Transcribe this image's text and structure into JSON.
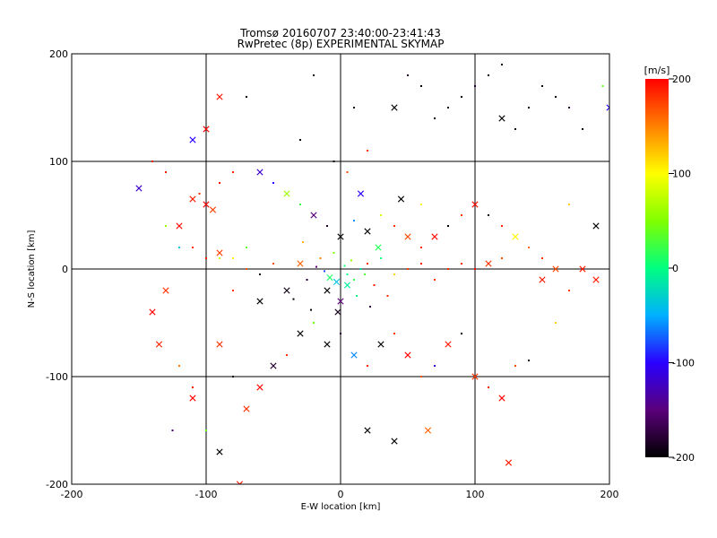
{
  "chart_data": {
    "type": "scatter",
    "title": "Tromsø 20160707 23:40:00-23:41:43",
    "subtitle": "RwPretec (8p) EXPERIMENTAL SKYMAP",
    "xlabel": "E-W location [km]",
    "ylabel": "N-S location [km]",
    "xlim": [
      -200,
      200
    ],
    "ylim": [
      -200,
      200
    ],
    "xticks": [
      -200,
      -100,
      0,
      100,
      200
    ],
    "yticks": [
      -200,
      -100,
      0,
      100,
      200
    ],
    "grid": true,
    "grid_lines": [
      -100,
      0,
      100
    ],
    "colorbar": {
      "label": "[m/s]",
      "range": [
        -200,
        200
      ],
      "ticks": [
        200,
        100,
        0,
        -100,
        -200
      ],
      "colormap": [
        "#000000",
        "#5a007a",
        "#2a00ff",
        "#00b0ff",
        "#00ff80",
        "#80ff00",
        "#ffff00",
        "#ff8000",
        "#ff0000"
      ]
    },
    "markers": {
      "small": "dot",
      "large": "x"
    },
    "points": [
      {
        "x": 5,
        "y": -5,
        "v": 0,
        "m": "dot"
      },
      {
        "x": 10,
        "y": -10,
        "v": 20,
        "m": "dot"
      },
      {
        "x": 15,
        "y": 0,
        "v": -20,
        "m": "dot"
      },
      {
        "x": -10,
        "y": -20,
        "v": -200,
        "m": "x"
      },
      {
        "x": -15,
        "y": 10,
        "v": 150,
        "m": "dot"
      },
      {
        "x": 20,
        "y": 5,
        "v": 180,
        "m": "dot"
      },
      {
        "x": 0,
        "y": -30,
        "v": -150,
        "m": "x"
      },
      {
        "x": -5,
        "y": 15,
        "v": 50,
        "m": "dot"
      },
      {
        "x": 25,
        "y": -15,
        "v": 190,
        "m": "dot"
      },
      {
        "x": -25,
        "y": -10,
        "v": -180,
        "m": "dot"
      },
      {
        "x": 30,
        "y": 10,
        "v": 0,
        "m": "dot"
      },
      {
        "x": -30,
        "y": 5,
        "v": 160,
        "m": "x"
      },
      {
        "x": 40,
        "y": -5,
        "v": 120,
        "m": "dot"
      },
      {
        "x": -40,
        "y": -20,
        "v": -190,
        "m": "x"
      },
      {
        "x": 50,
        "y": 0,
        "v": 175,
        "m": "dot"
      },
      {
        "x": -50,
        "y": 5,
        "v": 170,
        "m": "dot"
      },
      {
        "x": 60,
        "y": 5,
        "v": 195,
        "m": "dot"
      },
      {
        "x": -60,
        "y": -5,
        "v": -200,
        "m": "dot"
      },
      {
        "x": 70,
        "y": -10,
        "v": 180,
        "m": "dot"
      },
      {
        "x": -70,
        "y": 0,
        "v": 165,
        "m": "dot"
      },
      {
        "x": 80,
        "y": 0,
        "v": 185,
        "m": "dot"
      },
      {
        "x": -80,
        "y": 10,
        "v": 100,
        "m": "dot"
      },
      {
        "x": 90,
        "y": 5,
        "v": 190,
        "m": "dot"
      },
      {
        "x": -90,
        "y": 15,
        "v": 175,
        "m": "x"
      },
      {
        "x": 100,
        "y": 0,
        "v": 200,
        "m": "dot"
      },
      {
        "x": -100,
        "y": 10,
        "v": 190,
        "m": "dot"
      },
      {
        "x": 110,
        "y": 5,
        "v": 180,
        "m": "x"
      },
      {
        "x": 120,
        "y": 10,
        "v": 170,
        "m": "dot"
      },
      {
        "x": -110,
        "y": 20,
        "v": 185,
        "m": "dot"
      },
      {
        "x": -120,
        "y": 40,
        "v": 195,
        "m": "x"
      },
      {
        "x": -100,
        "y": 60,
        "v": 200,
        "m": "x"
      },
      {
        "x": -105,
        "y": 70,
        "v": 180,
        "m": "dot"
      },
      {
        "x": -95,
        "y": 55,
        "v": 175,
        "m": "x"
      },
      {
        "x": -110,
        "y": 65,
        "v": 190,
        "m": "x"
      },
      {
        "x": -90,
        "y": 80,
        "v": 200,
        "m": "dot"
      },
      {
        "x": -80,
        "y": 90,
        "v": 185,
        "m": "dot"
      },
      {
        "x": -60,
        "y": 90,
        "v": -120,
        "m": "x"
      },
      {
        "x": -50,
        "y": 80,
        "v": -100,
        "m": "dot"
      },
      {
        "x": -40,
        "y": 70,
        "v": 60,
        "m": "x"
      },
      {
        "x": -30,
        "y": 60,
        "v": 20,
        "m": "dot"
      },
      {
        "x": -20,
        "y": 50,
        "v": -150,
        "m": "x"
      },
      {
        "x": -10,
        "y": 40,
        "v": -180,
        "m": "dot"
      },
      {
        "x": 0,
        "y": 30,
        "v": -200,
        "m": "x"
      },
      {
        "x": 10,
        "y": 45,
        "v": -60,
        "m": "dot"
      },
      {
        "x": 20,
        "y": 35,
        "v": -200,
        "m": "x"
      },
      {
        "x": 30,
        "y": 50,
        "v": 80,
        "m": "dot"
      },
      {
        "x": 40,
        "y": 40,
        "v": 180,
        "m": "dot"
      },
      {
        "x": 50,
        "y": 30,
        "v": 170,
        "m": "x"
      },
      {
        "x": 60,
        "y": 20,
        "v": 190,
        "m": "dot"
      },
      {
        "x": 70,
        "y": 30,
        "v": 200,
        "m": "x"
      },
      {
        "x": 80,
        "y": 40,
        "v": -200,
        "m": "dot"
      },
      {
        "x": 90,
        "y": 50,
        "v": 180,
        "m": "dot"
      },
      {
        "x": 100,
        "y": 60,
        "v": 195,
        "m": "x"
      },
      {
        "x": 110,
        "y": 50,
        "v": -190,
        "m": "dot"
      },
      {
        "x": 120,
        "y": 40,
        "v": 185,
        "m": "dot"
      },
      {
        "x": 130,
        "y": 30,
        "v": 100,
        "m": "x"
      },
      {
        "x": 140,
        "y": 20,
        "v": 160,
        "m": "dot"
      },
      {
        "x": 150,
        "y": 10,
        "v": 180,
        "m": "dot"
      },
      {
        "x": 160,
        "y": 0,
        "v": 170,
        "m": "x"
      },
      {
        "x": 180,
        "y": 0,
        "v": 190,
        "m": "x"
      },
      {
        "x": 190,
        "y": 40,
        "v": -200,
        "m": "x"
      },
      {
        "x": 170,
        "y": 60,
        "v": 120,
        "m": "dot"
      },
      {
        "x": 70,
        "y": 140,
        "v": -200,
        "m": "dot"
      },
      {
        "x": 80,
        "y": 150,
        "v": -190,
        "m": "dot"
      },
      {
        "x": 90,
        "y": 160,
        "v": -200,
        "m": "dot"
      },
      {
        "x": 100,
        "y": 170,
        "v": -180,
        "m": "dot"
      },
      {
        "x": 110,
        "y": 180,
        "v": -200,
        "m": "dot"
      },
      {
        "x": 120,
        "y": 140,
        "v": -200,
        "m": "x"
      },
      {
        "x": 130,
        "y": 130,
        "v": -190,
        "m": "dot"
      },
      {
        "x": 140,
        "y": 150,
        "v": -200,
        "m": "dot"
      },
      {
        "x": 150,
        "y": 170,
        "v": -190,
        "m": "dot"
      },
      {
        "x": 160,
        "y": 160,
        "v": -200,
        "m": "dot"
      },
      {
        "x": 170,
        "y": 150,
        "v": -180,
        "m": "dot"
      },
      {
        "x": 180,
        "y": 130,
        "v": -200,
        "m": "dot"
      },
      {
        "x": 60,
        "y": 170,
        "v": -200,
        "m": "dot"
      },
      {
        "x": 50,
        "y": 180,
        "v": -190,
        "m": "dot"
      },
      {
        "x": 40,
        "y": 150,
        "v": -200,
        "m": "x"
      },
      {
        "x": 120,
        "y": 190,
        "v": -200,
        "m": "dot"
      },
      {
        "x": 200,
        "y": 150,
        "v": -100,
        "m": "x"
      },
      {
        "x": 195,
        "y": 170,
        "v": 40,
        "m": "dot"
      },
      {
        "x": -100,
        "y": 130,
        "v": 200,
        "m": "x"
      },
      {
        "x": -90,
        "y": 160,
        "v": 190,
        "m": "x"
      },
      {
        "x": -110,
        "y": 120,
        "v": -100,
        "m": "x"
      },
      {
        "x": -150,
        "y": 75,
        "v": -120,
        "m": "x"
      },
      {
        "x": -130,
        "y": 90,
        "v": 190,
        "m": "dot"
      },
      {
        "x": -140,
        "y": 100,
        "v": 200,
        "m": "dot"
      },
      {
        "x": -130,
        "y": -20,
        "v": 180,
        "m": "x"
      },
      {
        "x": -140,
        "y": -40,
        "v": 200,
        "m": "x"
      },
      {
        "x": -135,
        "y": -70,
        "v": 185,
        "m": "x"
      },
      {
        "x": -120,
        "y": -90,
        "v": 150,
        "m": "dot"
      },
      {
        "x": -110,
        "y": -110,
        "v": 190,
        "m": "dot"
      },
      {
        "x": -90,
        "y": -70,
        "v": 180,
        "m": "x"
      },
      {
        "x": -80,
        "y": -100,
        "v": -200,
        "m": "dot"
      },
      {
        "x": -70,
        "y": -130,
        "v": 180,
        "m": "x"
      },
      {
        "x": -60,
        "y": -110,
        "v": 200,
        "m": "x"
      },
      {
        "x": -50,
        "y": -90,
        "v": -180,
        "m": "x"
      },
      {
        "x": -40,
        "y": -80,
        "v": 180,
        "m": "dot"
      },
      {
        "x": -30,
        "y": -60,
        "v": -200,
        "m": "x"
      },
      {
        "x": -20,
        "y": -50,
        "v": 40,
        "m": "dot"
      },
      {
        "x": -10,
        "y": -70,
        "v": -200,
        "m": "x"
      },
      {
        "x": 0,
        "y": -60,
        "v": -180,
        "m": "dot"
      },
      {
        "x": 10,
        "y": -80,
        "v": -60,
        "m": "x"
      },
      {
        "x": 20,
        "y": -90,
        "v": 190,
        "m": "dot"
      },
      {
        "x": 30,
        "y": -70,
        "v": -200,
        "m": "x"
      },
      {
        "x": 40,
        "y": -60,
        "v": 180,
        "m": "dot"
      },
      {
        "x": 50,
        "y": -80,
        "v": 200,
        "m": "x"
      },
      {
        "x": 60,
        "y": -100,
        "v": 170,
        "m": "dot"
      },
      {
        "x": 70,
        "y": -90,
        "v": -120,
        "m": "dot"
      },
      {
        "x": 80,
        "y": -70,
        "v": 190,
        "m": "x"
      },
      {
        "x": 90,
        "y": -60,
        "v": -200,
        "m": "dot"
      },
      {
        "x": 100,
        "y": -100,
        "v": 180,
        "m": "x"
      },
      {
        "x": 110,
        "y": -110,
        "v": 190,
        "m": "dot"
      },
      {
        "x": 120,
        "y": -120,
        "v": 200,
        "m": "x"
      },
      {
        "x": 130,
        "y": -90,
        "v": 170,
        "m": "dot"
      },
      {
        "x": 140,
        "y": -85,
        "v": -200,
        "m": "dot"
      },
      {
        "x": 125,
        "y": -180,
        "v": 190,
        "m": "x"
      },
      {
        "x": 65,
        "y": -150,
        "v": 160,
        "m": "x"
      },
      {
        "x": 40,
        "y": -160,
        "v": -200,
        "m": "x"
      },
      {
        "x": 20,
        "y": -150,
        "v": -200,
        "m": "x"
      },
      {
        "x": -90,
        "y": -170,
        "v": -200,
        "m": "x"
      },
      {
        "x": -100,
        "y": -150,
        "v": 40,
        "m": "dot"
      },
      {
        "x": -110,
        "y": -120,
        "v": 200,
        "m": "x"
      },
      {
        "x": -75,
        "y": -200,
        "v": 190,
        "m": "x"
      },
      {
        "x": -125,
        "y": -150,
        "v": -150,
        "m": "dot"
      },
      {
        "x": 190,
        "y": -10,
        "v": 190,
        "m": "x"
      },
      {
        "x": 170,
        "y": -20,
        "v": 180,
        "m": "dot"
      },
      {
        "x": 160,
        "y": -50,
        "v": 120,
        "m": "dot"
      },
      {
        "x": 150,
        "y": -10,
        "v": 190,
        "m": "x"
      },
      {
        "x": -130,
        "y": 40,
        "v": 60,
        "m": "dot"
      },
      {
        "x": -120,
        "y": 20,
        "v": -40,
        "m": "dot"
      },
      {
        "x": -80,
        "y": -20,
        "v": 180,
        "m": "dot"
      },
      {
        "x": -90,
        "y": 10,
        "v": 80,
        "m": "dot"
      },
      {
        "x": -70,
        "y": 20,
        "v": 40,
        "m": "dot"
      },
      {
        "x": -60,
        "y": -30,
        "v": -200,
        "m": "x"
      },
      {
        "x": 60,
        "y": 60,
        "v": 100,
        "m": "dot"
      },
      {
        "x": 45,
        "y": 65,
        "v": -200,
        "m": "x"
      },
      {
        "x": 15,
        "y": 70,
        "v": -100,
        "m": "x"
      },
      {
        "x": 5,
        "y": 90,
        "v": 170,
        "m": "dot"
      },
      {
        "x": -5,
        "y": 100,
        "v": -200,
        "m": "dot"
      },
      {
        "x": 20,
        "y": 110,
        "v": 180,
        "m": "dot"
      },
      {
        "x": -30,
        "y": 120,
        "v": -200,
        "m": "dot"
      },
      {
        "x": 10,
        "y": 150,
        "v": -190,
        "m": "dot"
      },
      {
        "x": -70,
        "y": 160,
        "v": -200,
        "m": "dot"
      },
      {
        "x": -20,
        "y": 180,
        "v": -200,
        "m": "dot"
      },
      {
        "x": 5,
        "y": -15,
        "v": -10,
        "m": "x"
      },
      {
        "x": -8,
        "y": -8,
        "v": 10,
        "m": "x"
      },
      {
        "x": 12,
        "y": -25,
        "v": -5,
        "m": "dot"
      },
      {
        "x": -12,
        "y": -2,
        "v": -80,
        "m": "dot"
      },
      {
        "x": 18,
        "y": -5,
        "v": 30,
        "m": "dot"
      },
      {
        "x": -18,
        "y": 2,
        "v": -150,
        "m": "dot"
      },
      {
        "x": 8,
        "y": 8,
        "v": 60,
        "m": "dot"
      },
      {
        "x": -2,
        "y": -40,
        "v": -190,
        "m": "x"
      },
      {
        "x": 22,
        "y": -35,
        "v": -170,
        "m": "dot"
      },
      {
        "x": -22,
        "y": -38,
        "v": -200,
        "m": "dot"
      },
      {
        "x": 28,
        "y": 20,
        "v": 15,
        "m": "x"
      },
      {
        "x": -28,
        "y": 25,
        "v": 130,
        "m": "dot"
      },
      {
        "x": 35,
        "y": -25,
        "v": 180,
        "m": "dot"
      },
      {
        "x": -35,
        "y": -28,
        "v": -200,
        "m": "dot"
      },
      {
        "x": 3,
        "y": 3,
        "v": 5,
        "m": "dot"
      },
      {
        "x": -3,
        "y": -12,
        "v": -40,
        "m": "x"
      }
    ]
  }
}
